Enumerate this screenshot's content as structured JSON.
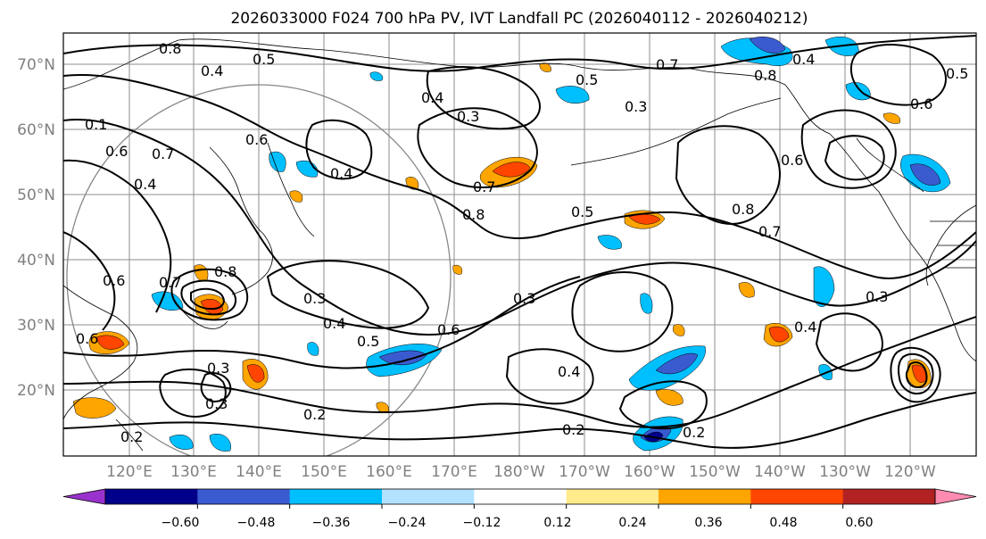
{
  "title": "2026033000 F024 700 hPa PV, IVT Landfall PC (2026040112 - 2026040212)",
  "lat_labels": [
    "70°N",
    "60°N",
    "50°N",
    "40°N",
    "30°N",
    "20°N"
  ],
  "lon_labels": [
    "120°E",
    "130°E",
    "140°E",
    "150°E",
    "160°E",
    "170°E",
    "180°W",
    "170°W",
    "160°W",
    "150°W",
    "140°W",
    "130°W",
    "120°W"
  ],
  "colorbar": {
    "colors": [
      "#9932cc",
      "#00008b",
      "#3a5bd0",
      "#00bfff",
      "#b2e2ff",
      "#ffffff",
      "#ffeb8a",
      "#ffa500",
      "#ff4500",
      "#b22222",
      "#ff8cb0"
    ],
    "tick_labels": [
      "−0.60",
      "−0.48",
      "−0.36",
      "−0.24",
      "−0.12",
      "0.12",
      "0.24",
      "0.36",
      "0.48",
      "0.60"
    ]
  },
  "contour_labels": [
    "0.4",
    "0.5",
    "0.8",
    "0.6",
    "0.7",
    "0.4",
    "0.3",
    "0.6",
    "0.4",
    "0.7",
    "0.8",
    "0.5",
    "0.3",
    "0.3",
    "0.4",
    "0.5",
    "0.6",
    "0.3",
    "0.4",
    "0.2",
    "0.3",
    "0.3",
    "0.4",
    "0.2",
    "0.2",
    "0.7",
    "0.6",
    "0.8",
    "0.7",
    "0.5",
    "0.6",
    "0.8",
    "0.4",
    "0.3",
    "0.4",
    "0.1",
    "0.6",
    "0.7",
    "0.8",
    "0.6",
    "0.5",
    "0.2"
  ]
}
